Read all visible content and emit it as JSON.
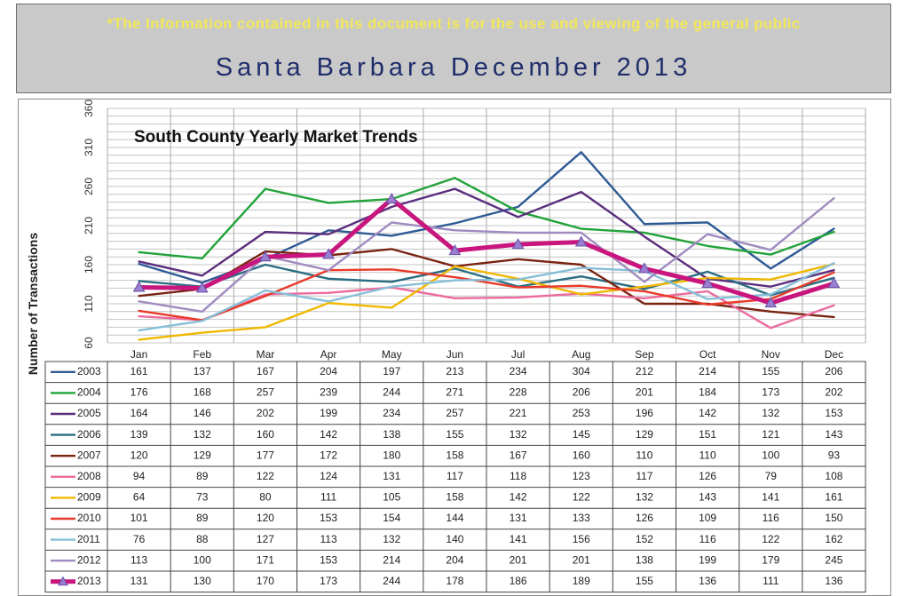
{
  "header": {
    "disclaimer": "*The Information contained in this document is for the use and viewing of the general public",
    "title": "Santa Barbara December 2013"
  },
  "chart_data": {
    "type": "line",
    "title": "South County Yearly Market Trends",
    "xlabel": "",
    "ylabel": "Number of Transactions",
    "ylim": [
      60,
      360
    ],
    "yticks": [
      60,
      110,
      160,
      210,
      260,
      310,
      360
    ],
    "grid": true,
    "legend": "data-table",
    "categories": [
      "Jan",
      "Feb",
      "Mar",
      "Apr",
      "May",
      "Jun",
      "Jul",
      "Aug",
      "Sep",
      "Oct",
      "Nov",
      "Dec"
    ],
    "series": [
      {
        "name": "2003",
        "color": "#2e5a94",
        "values": [
          161,
          137,
          167,
          204,
          197,
          213,
          234,
          304,
          212,
          214,
          155,
          206
        ]
      },
      {
        "name": "2004",
        "color": "#22a33a",
        "values": [
          176,
          168,
          257,
          239,
          244,
          271,
          228,
          206,
          201,
          184,
          173,
          202
        ]
      },
      {
        "name": "2005",
        "color": "#5b2e7d",
        "values": [
          164,
          146,
          202,
          199,
          234,
          257,
          221,
          253,
          196,
          142,
          132,
          153
        ]
      },
      {
        "name": "2006",
        "color": "#2a6d82",
        "values": [
          139,
          132,
          160,
          142,
          138,
          155,
          132,
          145,
          129,
          151,
          121,
          143
        ]
      },
      {
        "name": "2007",
        "color": "#7a2412",
        "values": [
          120,
          129,
          177,
          172,
          180,
          158,
          167,
          160,
          110,
          110,
          100,
          93
        ]
      },
      {
        "name": "2008",
        "color": "#ec6a9d",
        "values": [
          94,
          89,
          122,
          124,
          131,
          117,
          118,
          123,
          117,
          126,
          79,
          108
        ]
      },
      {
        "name": "2009",
        "color": "#f0b800",
        "values": [
          64,
          73,
          80,
          111,
          105,
          158,
          142,
          122,
          132,
          143,
          141,
          161
        ]
      },
      {
        "name": "2010",
        "color": "#e83a2a",
        "values": [
          101,
          89,
          120,
          153,
          154,
          144,
          131,
          133,
          126,
          109,
          116,
          150
        ]
      },
      {
        "name": "2011",
        "color": "#86bfd8",
        "values": [
          76,
          88,
          127,
          113,
          132,
          140,
          141,
          156,
          152,
          116,
          122,
          162
        ]
      },
      {
        "name": "2012",
        "color": "#a08bc0",
        "values": [
          113,
          100,
          171,
          153,
          214,
          204,
          201,
          201,
          138,
          199,
          179,
          245
        ]
      },
      {
        "name": "2013",
        "color": "#c8167e",
        "values": [
          131,
          130,
          170,
          173,
          244,
          178,
          186,
          189,
          155,
          136,
          111,
          136
        ],
        "marker": "triangle",
        "bold": true
      }
    ]
  }
}
